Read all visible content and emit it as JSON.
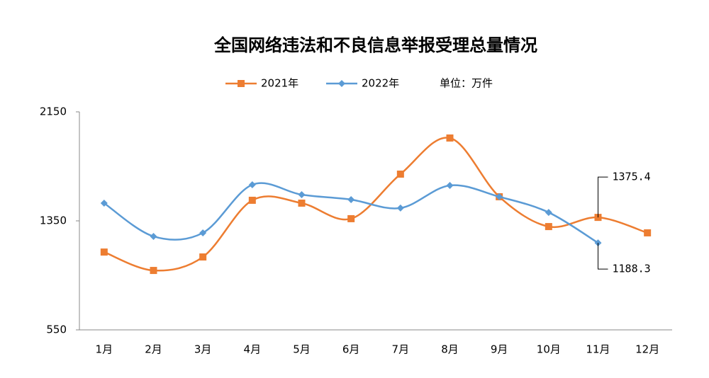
{
  "chart_data": {
    "type": "line",
    "title": "全国网络违法和不良信息举报受理总量情况",
    "unit": "单位：万件",
    "categories": [
      "1月",
      "2月",
      "3月",
      "4月",
      "5月",
      "6月",
      "7月",
      "8月",
      "9月",
      "10月",
      "11月",
      "12月"
    ],
    "series": [
      {
        "name": "2021年",
        "color": "#ED7D31",
        "marker": "square",
        "values": [
          1121,
          986,
          1085,
          1501,
          1480,
          1366,
          1693,
          1958,
          1527,
          1308,
          1375.4,
          1262
        ]
      },
      {
        "name": "2022年",
        "color": "#5B9BD5",
        "marker": "diamond",
        "values": [
          1480,
          1236,
          1262,
          1615,
          1542,
          1506,
          1444,
          1610,
          1527,
          1412,
          1188.3,
          null
        ]
      }
    ],
    "ylim": [
      550,
      2150
    ],
    "yticks": [
      550,
      1350,
      2150
    ],
    "smooth": true
  }
}
